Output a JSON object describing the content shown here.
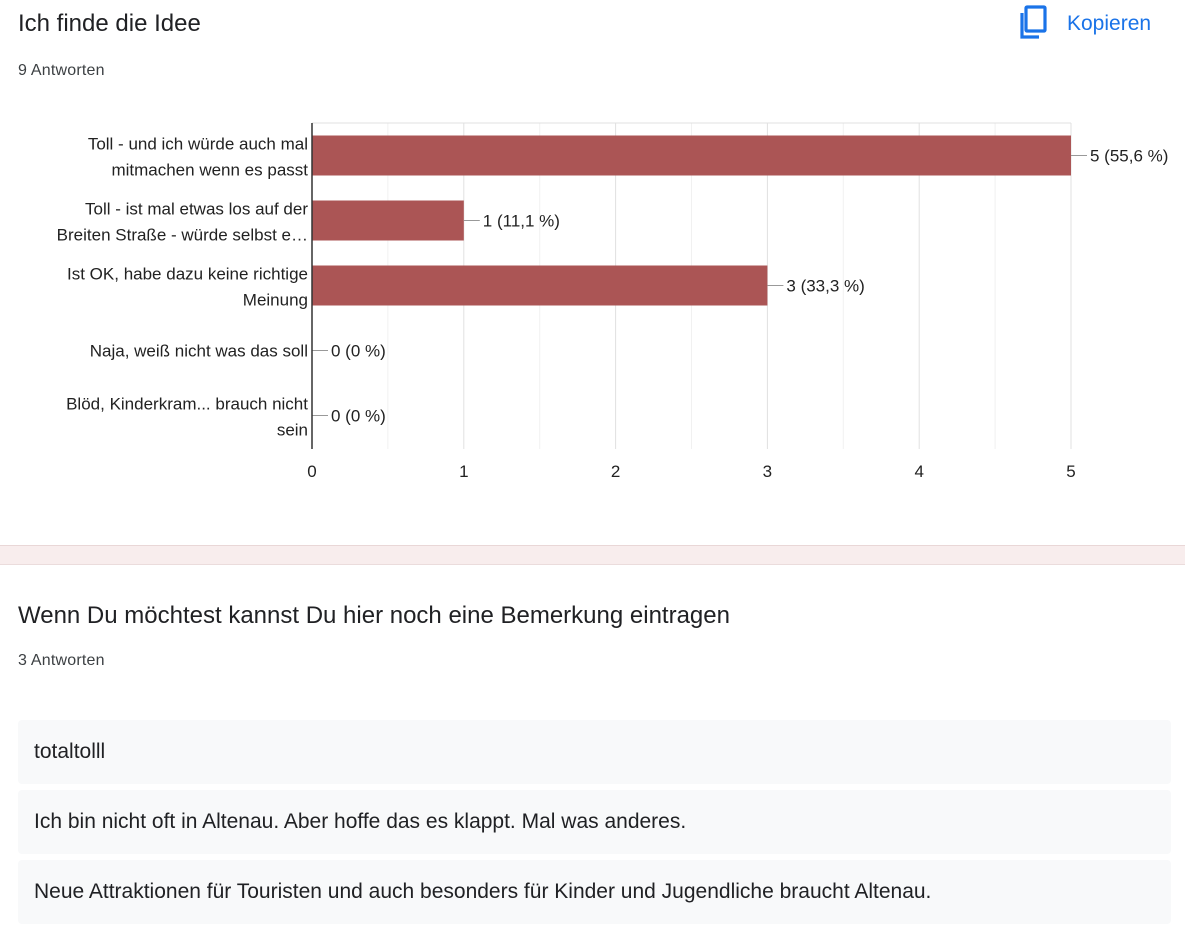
{
  "question1": {
    "title": "Ich finde die Idee",
    "responses": "9 Antworten",
    "copy_label": "Kopieren"
  },
  "chart_data": {
    "type": "bar",
    "orientation": "horizontal",
    "categories": [
      [
        "Toll - und ich würde auch mal",
        "mitmachen wenn es passt"
      ],
      [
        "Toll - ist mal etwas los auf der",
        "Breiten Straße - würde selbst e…"
      ],
      [
        "Ist OK, habe dazu keine richtige",
        "Meinung"
      ],
      [
        "Naja, weiß nicht was das soll"
      ],
      [
        "Blöd, Kinderkram... brauch nicht",
        "sein"
      ]
    ],
    "values": [
      5,
      1,
      3,
      0,
      0
    ],
    "data_labels": [
      "5 (55,6 %)",
      "1 (11,1 %)",
      "3 (33,3 %)",
      "0 (0 %)",
      "0 (0 %)"
    ],
    "xlim": [
      0,
      5
    ],
    "xticks": [
      0,
      1,
      2,
      3,
      4,
      5
    ],
    "grid": true,
    "bar_color": "#ab5555"
  },
  "question2": {
    "title": "Wenn Du möchtest kannst Du hier noch eine Bemerkung eintragen",
    "responses": "3 Antworten",
    "answers": [
      "totaltolll",
      "Ich bin nicht oft in Altenau. Aber hoffe das es klappt. Mal was anderes.",
      "Neue Attraktionen für Touristen und auch besonders für Kinder und Jugendliche braucht Altenau."
    ]
  },
  "colors": {
    "accent": "#1a73e8",
    "bar": "#ab5555",
    "separator": "#f8eded",
    "response_bg": "#f8f9fa"
  },
  "icons": {
    "copy": "copy-icon"
  }
}
